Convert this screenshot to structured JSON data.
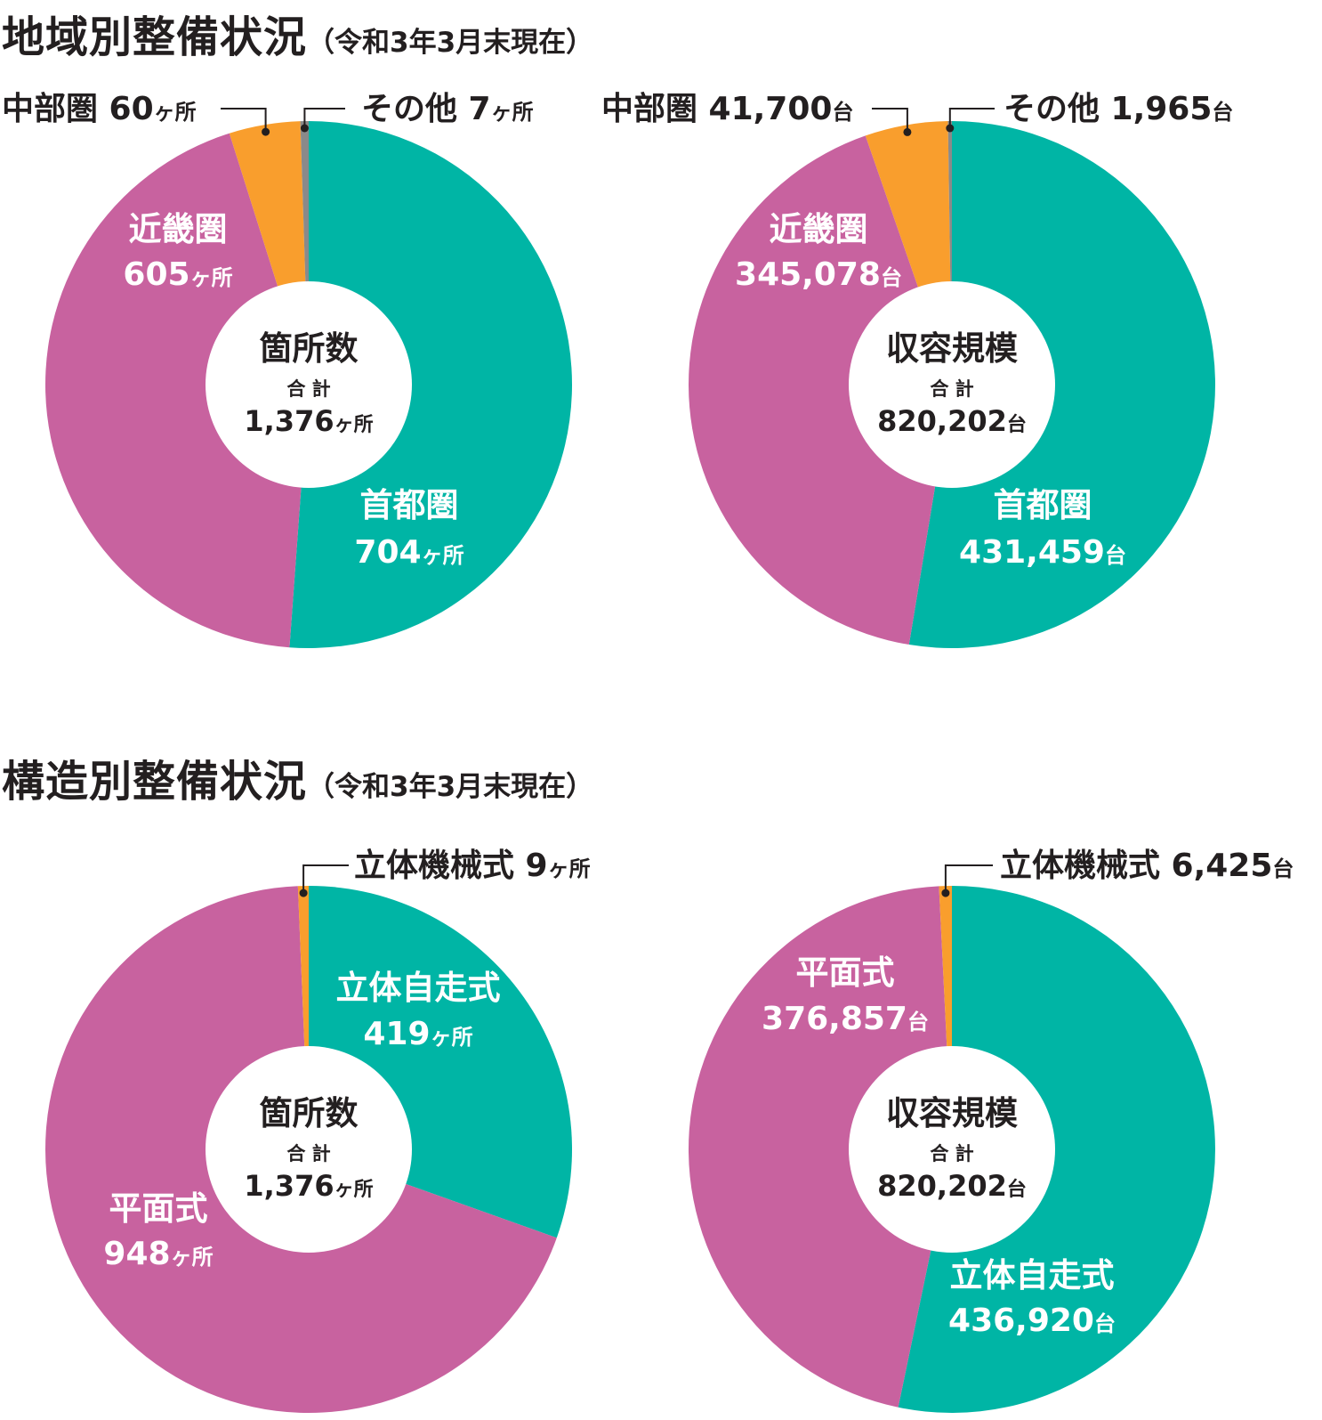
{
  "sections": [
    {
      "title": "地域別整備状況",
      "subtitle": "（令和3年3月末現在）"
    },
    {
      "title": "構造別整備状況",
      "subtitle": "（令和3年3月末現在）"
    }
  ],
  "colors": {
    "teal": "#00b5a5",
    "magenta": "#c8629f",
    "orange": "#f99e2d",
    "gray": "#8a8a8a",
    "text_dark": "#231f20",
    "text_white": "#ffffff"
  },
  "chart_data": [
    {
      "type": "pie",
      "center_title": "箇所数",
      "center_sub": "合 計",
      "center_total": "1,376",
      "unit": "ヶ所",
      "slices": [
        {
          "name": "首都圏",
          "value": 704,
          "value_text": "704",
          "color": "teal",
          "label_mode": "inside"
        },
        {
          "name": "近畿圏",
          "value": 605,
          "value_text": "605",
          "color": "magenta",
          "label_mode": "inside"
        },
        {
          "name": "中部圏",
          "value": 60,
          "value_text": "60",
          "color": "orange",
          "label_mode": "callout"
        },
        {
          "name": "その他",
          "value": 7,
          "value_text": "7",
          "color": "gray",
          "label_mode": "callout"
        }
      ]
    },
    {
      "type": "pie",
      "center_title": "収容規模",
      "center_sub": "合 計",
      "center_total": "820,202",
      "unit": "台",
      "slices": [
        {
          "name": "首都圏",
          "value": 431459,
          "value_text": "431,459",
          "color": "teal",
          "label_mode": "inside"
        },
        {
          "name": "近畿圏",
          "value": 345078,
          "value_text": "345,078",
          "color": "magenta",
          "label_mode": "inside"
        },
        {
          "name": "中部圏",
          "value": 41700,
          "value_text": "41,700",
          "color": "orange",
          "label_mode": "callout"
        },
        {
          "name": "その他",
          "value": 1965,
          "value_text": "1,965",
          "color": "gray",
          "label_mode": "callout"
        }
      ]
    },
    {
      "type": "pie",
      "center_title": "箇所数",
      "center_sub": "合 計",
      "center_total": "1,376",
      "unit": "ヶ所",
      "slices": [
        {
          "name": "立体自走式",
          "value": 419,
          "value_text": "419",
          "color": "teal",
          "label_mode": "inside"
        },
        {
          "name": "平面式",
          "value": 948,
          "value_text": "948",
          "color": "magenta",
          "label_mode": "inside"
        },
        {
          "name": "立体機械式",
          "value": 9,
          "value_text": "9",
          "color": "orange",
          "label_mode": "callout"
        }
      ]
    },
    {
      "type": "pie",
      "center_title": "収容規模",
      "center_sub": "合 計",
      "center_total": "820,202",
      "unit": "台",
      "slices": [
        {
          "name": "立体自走式",
          "value": 436920,
          "value_text": "436,920",
          "color": "teal",
          "label_mode": "inside"
        },
        {
          "name": "平面式",
          "value": 376857,
          "value_text": "376,857",
          "color": "magenta",
          "label_mode": "inside"
        },
        {
          "name": "立体機械式",
          "value": 6425,
          "value_text": "6,425",
          "color": "orange",
          "label_mode": "callout"
        }
      ]
    }
  ]
}
